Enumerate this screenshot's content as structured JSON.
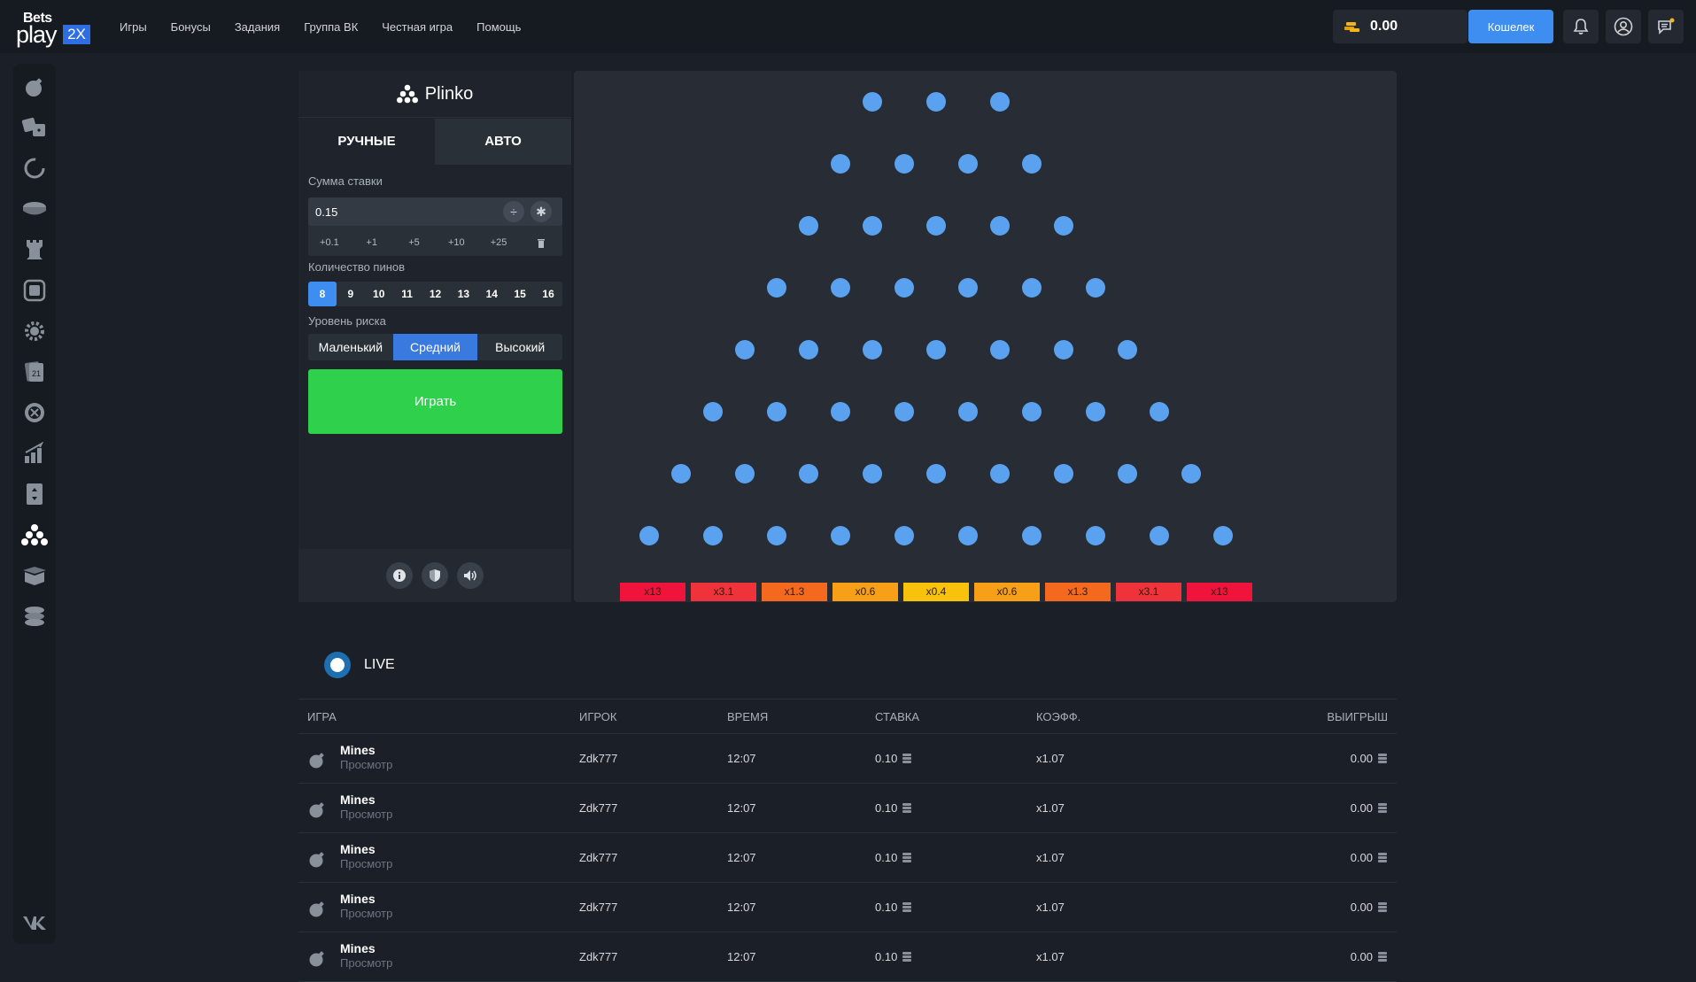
{
  "header": {
    "logo": {
      "line1": "Bets",
      "line2": "play",
      "badge": "2X"
    },
    "nav": [
      "Игры",
      "Бонусы",
      "Задания",
      "Группа ВК",
      "Честная игра",
      "Помощь"
    ],
    "balance": "0.00",
    "wallet_label": "Кошелек"
  },
  "sidebar": [
    "bomb-icon",
    "dice-icon",
    "wheel-icon",
    "coin-icon",
    "tower-icon",
    "keno-icon",
    "gear-icon",
    "cards-icon",
    "roulette-icon",
    "crash-icon",
    "hilo-icon",
    "plinko-icon",
    "case-icon",
    "stack-icon"
  ],
  "game": {
    "title": "Plinko",
    "tab_manual": "РУЧНЫЕ",
    "tab_auto": "АВТО",
    "bet_label": "Сумма ставки",
    "bet_value": "0.15",
    "divide_symbol": "÷",
    "multiply_symbol": "✱",
    "quick_adds": [
      "+0.1",
      "+1",
      "+5",
      "+10",
      "+25"
    ],
    "pins_label": "Количество пинов",
    "pins": [
      "8",
      "9",
      "10",
      "11",
      "12",
      "13",
      "14",
      "15",
      "16"
    ],
    "pins_selected": "8",
    "risk_label": "Уровень риска",
    "risk": [
      "Маленький",
      "Средний",
      "Высокий"
    ],
    "risk_selected": "Средний",
    "play_label": "Играть"
  },
  "board": {
    "peg_color": "#5aa2ef",
    "multipliers": [
      {
        "label": "x13",
        "color": "#f0143c"
      },
      {
        "label": "x3.1",
        "color": "#f0323a"
      },
      {
        "label": "x1.3",
        "color": "#f4691e"
      },
      {
        "label": "x0.6",
        "color": "#f7a017"
      },
      {
        "label": "x0.4",
        "color": "#f8c20c"
      },
      {
        "label": "x0.6",
        "color": "#f7a017"
      },
      {
        "label": "x1.3",
        "color": "#f4691e"
      },
      {
        "label": "x3.1",
        "color": "#f0323a"
      },
      {
        "label": "x13",
        "color": "#f0143c"
      }
    ]
  },
  "live": {
    "label": "LIVE",
    "headers": {
      "game": "ИГРА",
      "player": "ИГРОК",
      "time": "ВРЕМЯ",
      "bet": "СТАВКА",
      "coef": "КОЭФФ.",
      "win": "ВЫИГРЫШ"
    },
    "rows": [
      {
        "game": "Mines",
        "sub": "Просмотр",
        "player": "Zdk777",
        "time": "12:07",
        "bet": "0.10",
        "coef": "x1.07",
        "win": "0.00"
      },
      {
        "game": "Mines",
        "sub": "Просмотр",
        "player": "Zdk777",
        "time": "12:07",
        "bet": "0.10",
        "coef": "x1.07",
        "win": "0.00"
      },
      {
        "game": "Mines",
        "sub": "Просмотр",
        "player": "Zdk777",
        "time": "12:07",
        "bet": "0.10",
        "coef": "x1.07",
        "win": "0.00"
      },
      {
        "game": "Mines",
        "sub": "Просмотр",
        "player": "Zdk777",
        "time": "12:07",
        "bet": "0.10",
        "coef": "x1.07",
        "win": "0.00"
      },
      {
        "game": "Mines",
        "sub": "Просмотр",
        "player": "Zdk777",
        "time": "12:07",
        "bet": "0.10",
        "coef": "x1.07",
        "win": "0.00"
      }
    ]
  }
}
